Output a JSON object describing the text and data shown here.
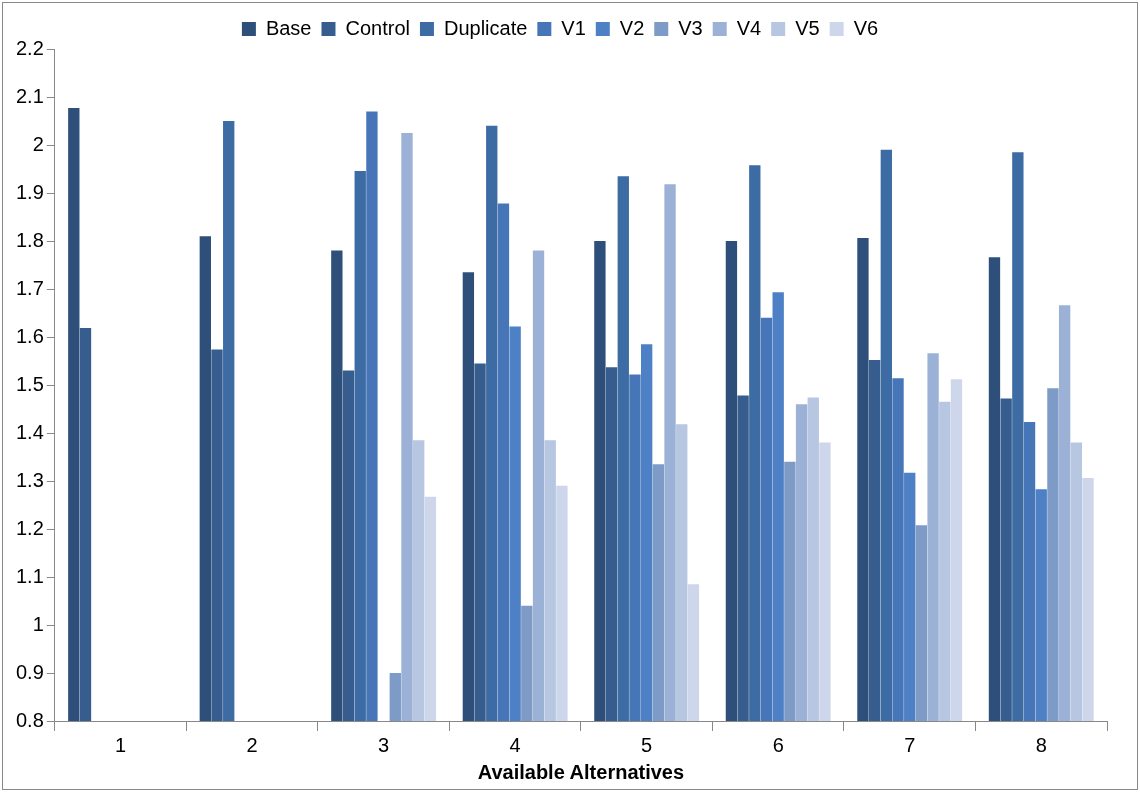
{
  "chart_data": {
    "type": "bar",
    "xlabel": "Available Alternatives",
    "categories": [
      "1",
      "2",
      "3",
      "4",
      "5",
      "6",
      "7",
      "8"
    ],
    "series": [
      {
        "name": "Base",
        "color": "#2e4f7a",
        "values": [
          2.077,
          1.81,
          1.78,
          1.735,
          1.8,
          1.8,
          1.806,
          1.766
        ]
      },
      {
        "name": "Control",
        "color": "#365d8d",
        "values": [
          1.619,
          1.574,
          1.53,
          1.545,
          1.537,
          1.478,
          1.552,
          1.472
        ]
      },
      {
        "name": "Duplicate",
        "color": "#3d6ba3",
        "values": [
          null,
          2.05,
          1.946,
          2.04,
          1.935,
          1.958,
          1.99,
          1.985
        ]
      },
      {
        "name": "V1",
        "color": "#4676b8",
        "values": [
          null,
          null,
          2.07,
          1.878,
          1.522,
          1.64,
          1.514,
          1.423
        ]
      },
      {
        "name": "V2",
        "color": "#4d80c4",
        "values": [
          null,
          null,
          null,
          1.622,
          1.585,
          1.693,
          1.317,
          1.283
        ]
      },
      {
        "name": "V3",
        "color": "#7e9bc8",
        "values": [
          null,
          null,
          0.9,
          1.04,
          1.335,
          1.34,
          1.208,
          1.493
        ]
      },
      {
        "name": "V4",
        "color": "#9cb1d6",
        "values": [
          null,
          null,
          2.025,
          1.78,
          1.918,
          1.46,
          1.566,
          1.666
        ]
      },
      {
        "name": "V5",
        "color": "#b7c6e1",
        "values": [
          null,
          null,
          1.385,
          1.385,
          1.418,
          1.474,
          1.465,
          1.38
        ]
      },
      {
        "name": "V6",
        "color": "#cdd6ea",
        "values": [
          null,
          null,
          1.267,
          1.29,
          1.085,
          1.38,
          1.512,
          1.306
        ]
      }
    ],
    "ylim": [
      0.8,
      2.2
    ],
    "yticks": [
      0.8,
      0.9,
      1,
      1.1,
      1.2,
      1.3,
      1.4,
      1.5,
      1.6,
      1.7,
      1.8,
      1.9,
      2,
      2.1,
      2.2
    ],
    "grid": false,
    "legend": "top"
  }
}
